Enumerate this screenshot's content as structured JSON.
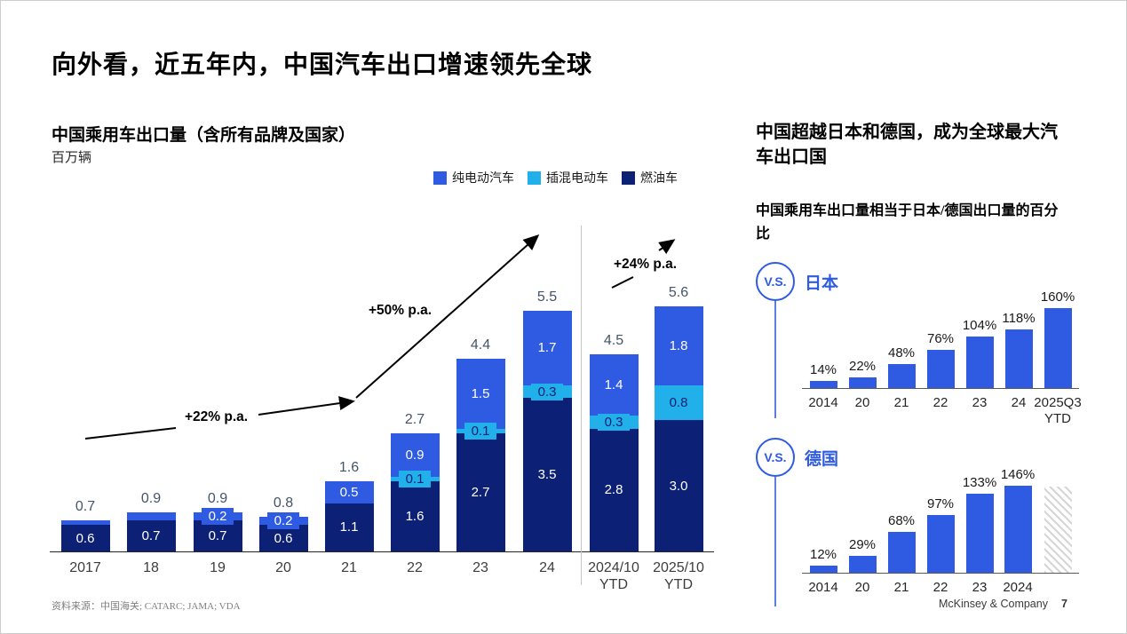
{
  "slide": {
    "title": "向外看，近五年内，中国汽车出口增速领先全球"
  },
  "footer": {
    "source": "资料来源：中国海关; CATARC; JAMA; VDA",
    "brand": "McKinsey & Company",
    "page": "7"
  },
  "colors": {
    "bev": "#2E5BE2",
    "phev": "#22B0EA",
    "ice": "#0C2175",
    "total_label": "#44546A",
    "vs_blue": "#2E5BE2"
  },
  "right_panel": {
    "title": "中国超越日本和德国，成为全球最大汽车出口国",
    "subtitle": "中国乘用车出口量相当于日本/德国出口量的百分比",
    "vs_text": "V.S.",
    "japan_label": "日本",
    "germany_label": "德国"
  },
  "chart_data": [
    {
      "type": "bar",
      "stacked": true,
      "title": "中国乘用车出口量（含所有品牌及国家）",
      "unit": "百万辆",
      "ylim": [
        0,
        6
      ],
      "legend": [
        {
          "key": "bev",
          "label": "纯电动汽车"
        },
        {
          "key": "phev",
          "label": "插混电动车"
        },
        {
          "key": "ice",
          "label": "燃油车"
        }
      ],
      "annotations": [
        {
          "text": "+22% p.a."
        },
        {
          "text": "+50% p.a."
        },
        {
          "text": "+24% p.a."
        }
      ],
      "bars": [
        {
          "tick": [
            "2017"
          ],
          "total": 0.7,
          "total_label": "0.7",
          "segments": [
            {
              "key": "ice",
              "value": 0.6,
              "label": "0.6",
              "label_style": "inside"
            },
            {
              "key": "bev",
              "value": 0.1,
              "label": "",
              "label_style": "none"
            }
          ]
        },
        {
          "tick": [
            "18"
          ],
          "total": 0.9,
          "total_label": "0.9",
          "segments": [
            {
              "key": "ice",
              "value": 0.7,
              "label": "0.7",
              "label_style": "inside"
            },
            {
              "key": "bev",
              "value": 0.2,
              "label": "",
              "label_style": "none"
            }
          ]
        },
        {
          "tick": [
            "19"
          ],
          "total": 0.9,
          "total_label": "0.9",
          "segments": [
            {
              "key": "ice",
              "value": 0.7,
              "label": "0.7",
              "label_style": "inside"
            },
            {
              "key": "bev",
              "value": 0.2,
              "label": "0.2",
              "label_style": "badge"
            }
          ]
        },
        {
          "tick": [
            "20"
          ],
          "total": 0.8,
          "total_label": "0.8",
          "segments": [
            {
              "key": "ice",
              "value": 0.6,
              "label": "0.6",
              "label_style": "inside"
            },
            {
              "key": "bev",
              "value": 0.2,
              "label": "0.2",
              "label_style": "badge"
            }
          ]
        },
        {
          "tick": [
            "21"
          ],
          "total": 1.6,
          "total_label": "1.6",
          "segments": [
            {
              "key": "ice",
              "value": 1.1,
              "label": "1.1",
              "label_style": "inside"
            },
            {
              "key": "bev",
              "value": 0.5,
              "label": "0.5",
              "label_style": "inside"
            }
          ]
        },
        {
          "tick": [
            "22"
          ],
          "total": 2.7,
          "total_label": "2.7",
          "segments": [
            {
              "key": "ice",
              "value": 1.6,
              "label": "1.6",
              "label_style": "inside"
            },
            {
              "key": "phev",
              "value": 0.1,
              "label": "0.1",
              "label_style": "badge"
            },
            {
              "key": "bev",
              "value": 0.9,
              "label": "0.9",
              "label_style": "inside"
            }
          ]
        },
        {
          "tick": [
            "23"
          ],
          "total": 4.4,
          "total_label": "4.4",
          "segments": [
            {
              "key": "ice",
              "value": 2.7,
              "label": "2.7",
              "label_style": "inside"
            },
            {
              "key": "phev",
              "value": 0.1,
              "label": "0.1",
              "label_style": "badge"
            },
            {
              "key": "bev",
              "value": 1.5,
              "label": "1.5",
              "label_style": "inside"
            }
          ]
        },
        {
          "tick": [
            "24"
          ],
          "total": 5.5,
          "total_label": "5.5",
          "segments": [
            {
              "key": "ice",
              "value": 3.5,
              "label": "3.5",
              "label_style": "inside"
            },
            {
              "key": "phev",
              "value": 0.3,
              "label": "0.3",
              "label_style": "badge"
            },
            {
              "key": "bev",
              "value": 1.7,
              "label": "1.7",
              "label_style": "inside"
            }
          ]
        },
        {
          "tick": [
            "2024/10",
            "YTD"
          ],
          "total": 4.5,
          "total_label": "4.5",
          "segments": [
            {
              "key": "ice",
              "value": 2.8,
              "label": "2.8",
              "label_style": "inside"
            },
            {
              "key": "phev",
              "value": 0.3,
              "label": "0.3",
              "label_style": "badge"
            },
            {
              "key": "bev",
              "value": 1.4,
              "label": "1.4",
              "label_style": "inside"
            }
          ]
        },
        {
          "tick": [
            "2025/10",
            "YTD"
          ],
          "total": 5.6,
          "total_label": "5.6",
          "segments": [
            {
              "key": "ice",
              "value": 3.0,
              "label": "3.0",
              "label_style": "inside"
            },
            {
              "key": "phev",
              "value": 0.8,
              "label": "0.8",
              "label_style": "inside"
            },
            {
              "key": "bev",
              "value": 1.8,
              "label": "1.8",
              "label_style": "inside"
            }
          ]
        }
      ]
    },
    {
      "type": "bar",
      "title": "V.S. 日本",
      "unit": "%",
      "ylim": [
        0,
        170
      ],
      "categories": [
        [
          "2014"
        ],
        [
          "20"
        ],
        [
          "21"
        ],
        [
          "22"
        ],
        [
          "23"
        ],
        [
          "24"
        ],
        [
          "2025Q3",
          "YTD"
        ]
      ],
      "values": [
        14,
        22,
        48,
        76,
        104,
        118,
        160
      ],
      "labels": [
        "14%",
        "22%",
        "48%",
        "76%",
        "104%",
        "118%",
        "160%"
      ]
    },
    {
      "type": "bar",
      "title": "V.S. 德国",
      "unit": "%",
      "ylim": [
        0,
        160
      ],
      "categories": [
        [
          "2014"
        ],
        [
          "20"
        ],
        [
          "21"
        ],
        [
          "22"
        ],
        [
          "23"
        ],
        [
          "2024"
        ]
      ],
      "values": [
        12,
        29,
        68,
        97,
        133,
        146
      ],
      "labels": [
        "12%",
        "29%",
        "68%",
        "97%",
        "133%",
        "146%"
      ],
      "placeholder_hatched_bar": true
    }
  ]
}
